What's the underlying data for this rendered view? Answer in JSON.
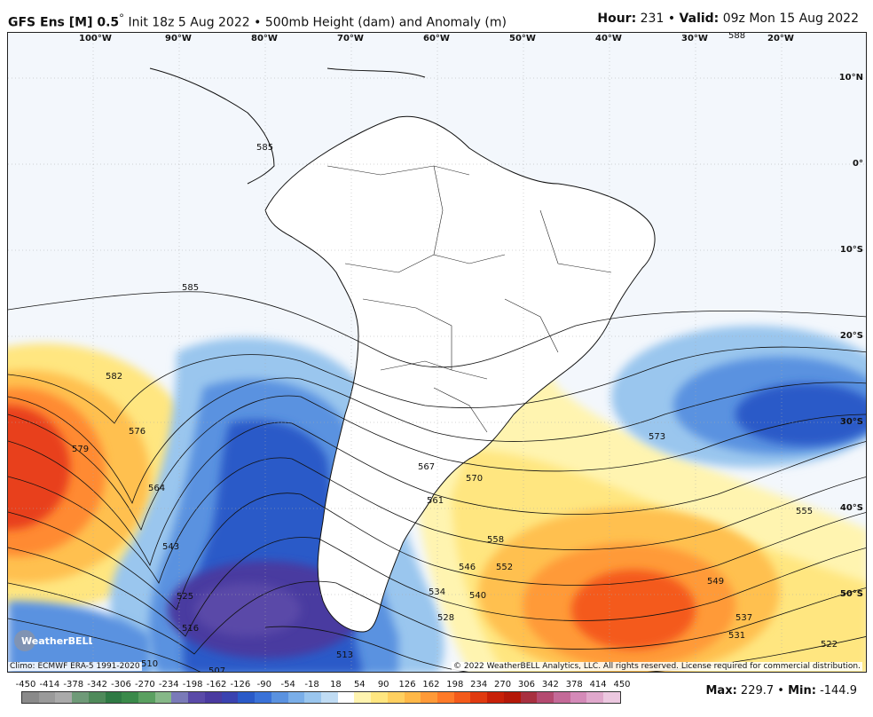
{
  "header": {
    "model": "GFS Ens [M] 0.5",
    "init": "Init 18z 5 Aug 2022",
    "product": "500mb Height (dam) and Anomaly (m)",
    "hour_label": "Hour:",
    "hour_value": "231",
    "valid_label": "Valid:",
    "valid_value": "09z Mon 15 Aug 2022"
  },
  "map": {
    "lon_labels": [
      "100°W",
      "90°W",
      "80°W",
      "70°W",
      "60°W",
      "50°W",
      "40°W",
      "30°W",
      "20°W"
    ],
    "lat_labels": [
      "10°N",
      "0°",
      "10°S",
      "20°S",
      "30°S",
      "40°S",
      "50°S"
    ],
    "contour_labels": [
      "588",
      "585",
      "585",
      "582",
      "579",
      "576",
      "573",
      "570",
      "567",
      "564",
      "561",
      "558",
      "555",
      "552",
      "549",
      "546",
      "543",
      "540",
      "537",
      "534",
      "531",
      "528",
      "525",
      "522",
      "516",
      "513",
      "510",
      "507"
    ],
    "land_color": "#ffffff",
    "ocean_color": "#f3f7fc"
  },
  "footer": {
    "climo": "Climo: ECMWF ERA-5 1991-2020",
    "copyright": "© 2022 WeatherBELL Analytics, LLC. All rights reserved. License required for commercial distribution.",
    "logo_text": "WeatherBELL",
    "max_label": "Max:",
    "max_value": "229.7",
    "min_label": "Min:",
    "min_value": "-144.9"
  },
  "colorbar": {
    "labels": [
      "-450",
      "-414",
      "-378",
      "-342",
      "-306",
      "-270",
      "-234",
      "-198",
      "-162",
      "-126",
      "-90",
      "-54",
      "-18",
      "18",
      "54",
      "90",
      "126",
      "162",
      "198",
      "234",
      "270",
      "306",
      "342",
      "378",
      "414",
      "450"
    ],
    "colors": [
      "#8a8a8a",
      "#9a9a9a",
      "#aaaaaa",
      "#6f9a78",
      "#4f8a5a",
      "#2f7a44",
      "#3a8a4a",
      "#5aa060",
      "#86b888",
      "#7a7ab8",
      "#5a4aa8",
      "#4a3aa0",
      "#3a42b0",
      "#2a5ac8",
      "#3a72d8",
      "#5a92e0",
      "#7aaee8",
      "#9ac6ee",
      "#c0dcf4",
      "#ffffff",
      "#fff4b0",
      "#ffe680",
      "#ffd060",
      "#ffb848",
      "#ff9a38",
      "#ff7a28",
      "#f45a1a",
      "#e03a10",
      "#c82008",
      "#b41808",
      "#a83040",
      "#b44a70",
      "#c46a98",
      "#d48ab8",
      "#e0a8cc",
      "#ecc8e0"
    ]
  }
}
